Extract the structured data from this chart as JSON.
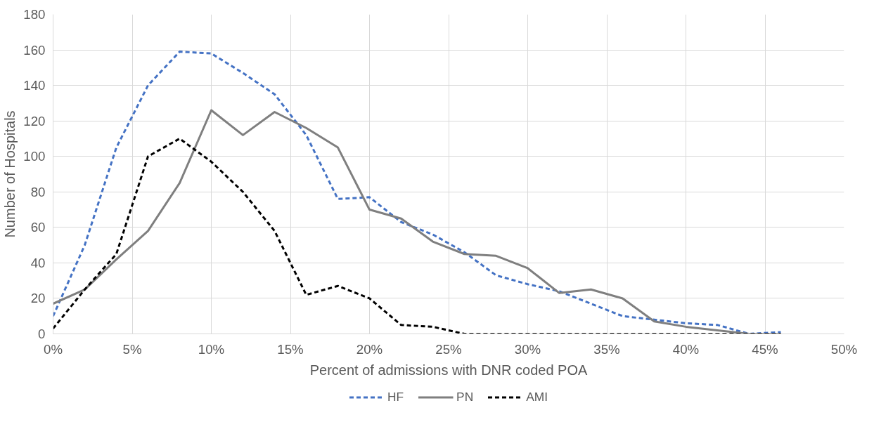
{
  "chart_data": {
    "type": "line",
    "xlabel": "Percent of admissions with DNR coded POA",
    "ylabel": "Number of Hospitals",
    "x": [
      0,
      2,
      4,
      6,
      8,
      10,
      12,
      14,
      16,
      18,
      20,
      22,
      24,
      26,
      28,
      30,
      32,
      34,
      36,
      38,
      40,
      42,
      44,
      46
    ],
    "series": [
      {
        "name": "HF",
        "color": "#4472c4",
        "line_style": "dashed",
        "values": [
          10,
          50,
          105,
          140,
          159,
          158,
          147,
          135,
          112,
          76,
          77,
          63,
          56,
          46,
          33,
          28,
          24,
          17,
          10,
          8,
          6,
          5,
          0,
          1
        ]
      },
      {
        "name": "PN",
        "color": "#7f7f7f",
        "line_style": "solid",
        "values": [
          17,
          25,
          42,
          58,
          85,
          126,
          112,
          125,
          116,
          105,
          70,
          65,
          52,
          45,
          44,
          37,
          23,
          25,
          20,
          7,
          4,
          2,
          0,
          0
        ]
      },
      {
        "name": "AMI",
        "color": "#000000",
        "line_style": "dashed",
        "values": [
          3,
          25,
          45,
          100,
          110,
          97,
          80,
          58,
          22,
          27,
          20,
          5,
          4,
          0,
          0,
          0,
          0,
          0,
          0,
          0,
          0,
          0,
          0,
          0
        ]
      }
    ],
    "xlim": [
      0,
      50
    ],
    "xticks": [
      {
        "value": 0,
        "label": "0%"
      },
      {
        "value": 5,
        "label": "5%"
      },
      {
        "value": 10,
        "label": "10%"
      },
      {
        "value": 15,
        "label": "15%"
      },
      {
        "value": 20,
        "label": "20%"
      },
      {
        "value": 25,
        "label": "25%"
      },
      {
        "value": 30,
        "label": "30%"
      },
      {
        "value": 35,
        "label": "35%"
      },
      {
        "value": 40,
        "label": "40%"
      },
      {
        "value": 45,
        "label": "45%"
      },
      {
        "value": 50,
        "label": "50%"
      }
    ],
    "ylim": [
      0,
      180
    ],
    "yticks": [
      0,
      20,
      40,
      60,
      80,
      100,
      120,
      140,
      160,
      180
    ],
    "grid": true,
    "legend": "bottom"
  }
}
